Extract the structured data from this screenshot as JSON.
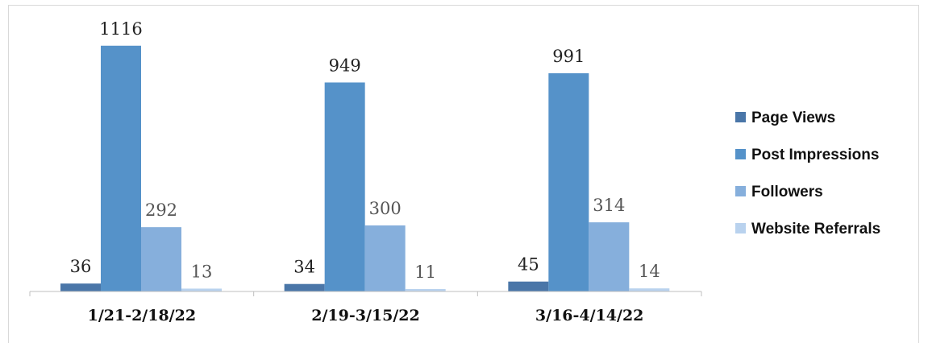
{
  "chart_data": {
    "type": "bar",
    "categories": [
      "1/21-2/18/22",
      "2/19-3/15/22",
      "3/16-4/14/22"
    ],
    "series": [
      {
        "name": "Page Views",
        "values": [
          36,
          34,
          45
        ],
        "color": "#4a76a8"
      },
      {
        "name": "Post Impressions",
        "values": [
          1116,
          949,
          991
        ],
        "color": "#5592c9"
      },
      {
        "name": "Followers",
        "values": [
          292,
          300,
          314
        ],
        "color": "#86afdc"
      },
      {
        "name": "Website Referrals",
        "values": [
          13,
          11,
          14
        ],
        "color": "#b9d2ee"
      }
    ],
    "title": "",
    "xlabel": "",
    "ylabel": "",
    "ylim": [
      0,
      1200
    ],
    "grid": false,
    "legend": "right"
  }
}
